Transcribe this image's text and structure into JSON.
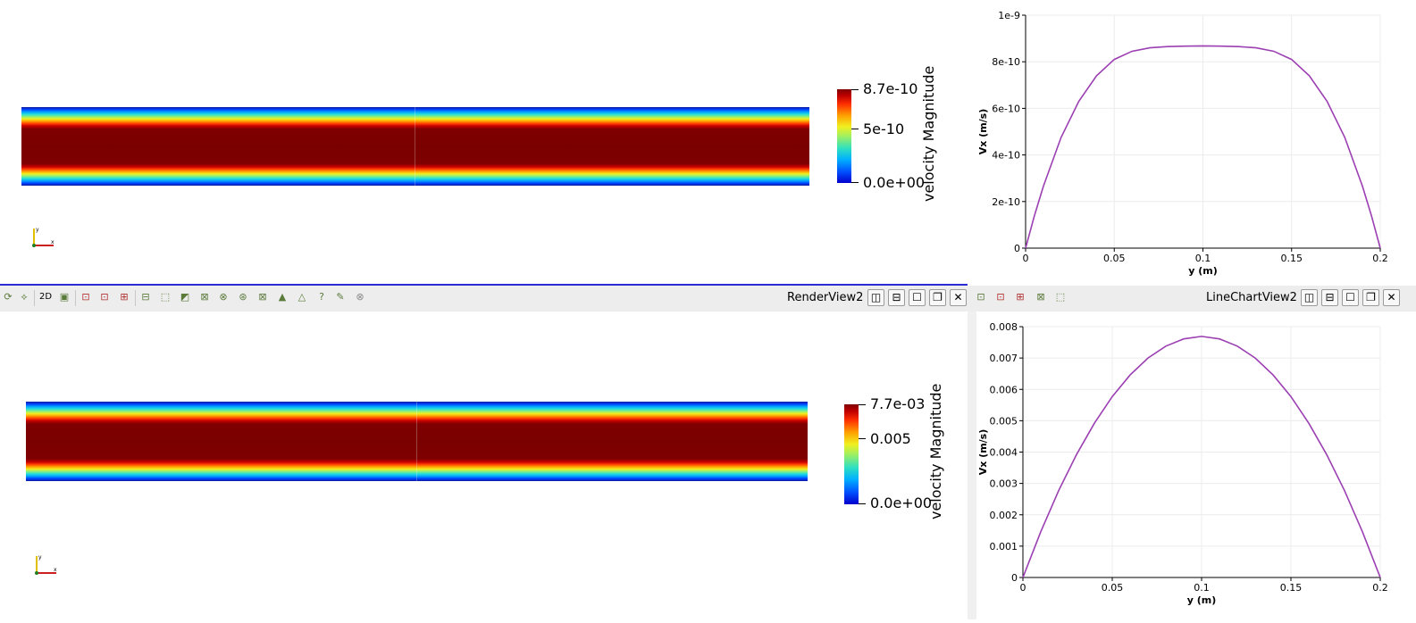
{
  "top_view": {
    "colorbar": {
      "title": "velocity Magnitude",
      "max_label": "8.7e-10",
      "mid_label": "5e-10",
      "min_label": "0.0e+00"
    }
  },
  "bottom_view": {
    "colorbar": {
      "title": "velocity Magnitude",
      "max_label": "7.7e-03",
      "mid_label": "0.005",
      "min_label": "0.0e+00"
    }
  },
  "toolbar": {
    "left_icons": [
      "reset-camera-icon",
      "select-icon",
      "2d-toggle-icon",
      "screenshot-icon",
      "select-points-icon",
      "select-cells-icon",
      "select-block-icon",
      "interactive-select-icon",
      "frustum-select-icon",
      "polygon-select-icon",
      "grow-selection-icon",
      "shrink-selection-icon",
      "clear-selection-icon",
      "hover-points-icon",
      "hover-cells-icon",
      "query-icon",
      "edit-icon",
      "close-circle-icon"
    ],
    "label_2d": "2D",
    "render_view_label": "RenderView2",
    "chart_view_label": "LineChartView2",
    "split_h": "◫",
    "split_v": "⊟",
    "maximize": "☐",
    "restore": "❐",
    "close": "✕"
  },
  "chart_data": [
    {
      "type": "line",
      "title": "",
      "xlabel": "y (m)",
      "ylabel": "Vx (m/s)",
      "xlim": [
        0,
        0.2
      ],
      "ylim": [
        0,
        1e-09
      ],
      "x_ticks": [
        "0",
        "0.05",
        "0.1",
        "0.15",
        "0.2"
      ],
      "y_ticks": [
        "0",
        "2e-10",
        "4e-10",
        "6e-10",
        "8e-10",
        "1e-9"
      ],
      "grid": true,
      "series": [
        {
          "color": "#9b3fb2",
          "x": [
            0,
            0.005,
            0.01,
            0.02,
            0.03,
            0.04,
            0.05,
            0.06,
            0.07,
            0.08,
            0.09,
            0.1,
            0.11,
            0.12,
            0.13,
            0.14,
            0.15,
            0.16,
            0.17,
            0.18,
            0.19,
            0.195,
            0.2
          ],
          "y": [
            0,
            1.4e-10,
            2.65e-10,
            4.75e-10,
            6.3e-10,
            7.4e-10,
            8.1e-10,
            8.45e-10,
            8.6e-10,
            8.65e-10,
            8.67e-10,
            8.68e-10,
            8.67e-10,
            8.65e-10,
            8.6e-10,
            8.45e-10,
            8.1e-10,
            7.4e-10,
            6.3e-10,
            4.75e-10,
            2.65e-10,
            1.4e-10,
            0
          ]
        }
      ]
    },
    {
      "type": "line",
      "title": "",
      "xlabel": "y (m)",
      "ylabel": "Vx (m/s)",
      "xlim": [
        0,
        0.2
      ],
      "ylim": [
        0,
        0.008
      ],
      "x_ticks": [
        "0",
        "0.05",
        "0.1",
        "0.15",
        "0.2"
      ],
      "y_ticks": [
        "0",
        "0.001",
        "0.002",
        "0.003",
        "0.004",
        "0.005",
        "0.006",
        "0.007",
        "0.008"
      ],
      "grid": true,
      "series": [
        {
          "color": "#9b3fb2",
          "x": [
            0,
            0.01,
            0.02,
            0.03,
            0.04,
            0.05,
            0.06,
            0.07,
            0.08,
            0.09,
            0.1,
            0.11,
            0.12,
            0.13,
            0.14,
            0.15,
            0.16,
            0.17,
            0.18,
            0.19,
            0.2
          ],
          "y": [
            0,
            0.00146,
            0.00277,
            0.00392,
            0.00492,
            0.00577,
            0.00646,
            0.007,
            0.00738,
            0.00761,
            0.00769,
            0.00761,
            0.00738,
            0.007,
            0.00646,
            0.00577,
            0.00492,
            0.00392,
            0.00277,
            0.00146,
            0
          ]
        }
      ]
    }
  ]
}
